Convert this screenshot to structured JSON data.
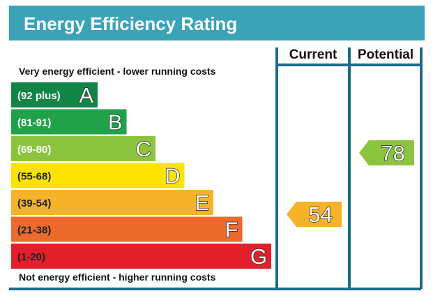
{
  "title": "Energy Efficiency Rating",
  "columns": {
    "current": "Current",
    "potential": "Potential"
  },
  "top_caption": "Very energy efficient - lower running costs",
  "bottom_caption": "Not energy efficient - higher running costs",
  "colors": {
    "header": "#3aa3b8",
    "frame": "#1e6b8a"
  },
  "chart_data": {
    "type": "bar",
    "categories": [
      "(92 plus)",
      "(81-91)",
      "(69-80)",
      "(55-68)",
      "(39-54)",
      "(21-38)",
      "(1-20)"
    ],
    "letters": [
      "A",
      "B",
      "C",
      "D",
      "E",
      "F",
      "G"
    ],
    "band_colors": [
      "#118545",
      "#20a24b",
      "#8cc43f",
      "#fde400",
      "#f6b32a",
      "#ec6a2b",
      "#e21f2a"
    ],
    "current": {
      "value": 54,
      "band": "E",
      "color": "#f6b32a"
    },
    "potential": {
      "value": 78,
      "band": "C",
      "color": "#8cc43f"
    }
  }
}
